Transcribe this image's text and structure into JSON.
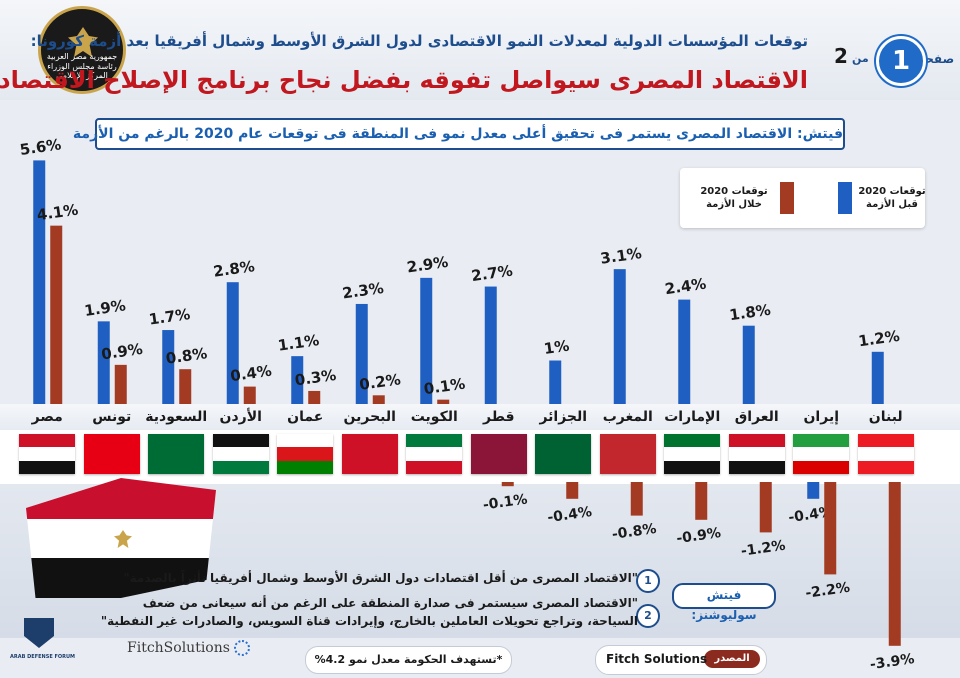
{
  "header": {
    "subtitle": "توقعات المؤسسات الدولية لمعدلات النمو الاقتصادى لدول الشرق الأوسط وشمال أفريقيا بعد أزمة كورونا:",
    "title": "الاقتصاد المصرى سيواصل تفوقه بفضل نجاح برنامج الإصلاح الاقتصادى",
    "logo_text": "جمهورية مصر العربية رئاسة مجلس الوزراء المركز الإعلامى",
    "page_word": "صفحة",
    "page_number": "1",
    "page_of": "من",
    "page_total": "2"
  },
  "fitch_note": "فيتش: الاقتصاد المصرى يستمر فى تحقيق أعلى معدل نمو فى المنطقة فى توقعات عام 2020 بالرغم من الأزمة",
  "legend": {
    "before": "توقعات 2020 قبل الأزمة",
    "during": "توقعات 2020 خلال الأزمة",
    "before_color": "#1f5fc2",
    "during_color": "#a33a22"
  },
  "chart_data": {
    "type": "bar",
    "categories": [
      "مصر",
      "تونس",
      "السعودية",
      "الأردن",
      "عمان",
      "البحرين",
      "الكويت",
      "قطر",
      "الجزائر",
      "المغرب",
      "الإمارات",
      "العراق",
      "إيران",
      "لبنان"
    ],
    "series": [
      {
        "values": [
          5.6,
          1.9,
          1.7,
          2.8,
          1.1,
          2.3,
          2.9,
          2.7,
          1,
          3.1,
          2.4,
          1.8,
          -0.4,
          1.2
        ]
      },
      {
        "values": [
          4.1,
          0.9,
          0.8,
          0.4,
          0.3,
          0.2,
          0.1,
          -0.1,
          -0.4,
          -0.8,
          -0.9,
          -1.2,
          -2.2,
          -3.9
        ]
      }
    ],
    "value_labels_before": [
      "5.6%",
      "1.9%",
      "1.7%",
      "2.8%",
      "1.1%",
      "2.3%",
      "2.9%",
      "2.7%",
      "1%",
      "3.1%",
      "2.4%",
      "1.8%",
      "-0.4%",
      "1.2%"
    ],
    "value_labels_during": [
      "4.1%",
      "0.9%",
      "0.8%",
      "0.4%",
      "0.3%",
      "0.2%",
      "0.1%",
      "-0.1%",
      "-0.4%",
      "-0.8%",
      "-0.9%",
      "-1.2%",
      "-2.2%",
      "-3.9%"
    ]
  },
  "flags": [
    {
      "country": "مصر",
      "stripes": [
        "#ce1126",
        "#ffffff",
        "#111111"
      ]
    },
    {
      "country": "تونس",
      "stripes": [
        "#e70013"
      ]
    },
    {
      "country": "السعودية",
      "stripes": [
        "#006c35"
      ]
    },
    {
      "country": "الأردن",
      "stripes": [
        "#111111",
        "#ffffff",
        "#007a3d"
      ]
    },
    {
      "country": "عمان",
      "stripes": [
        "#ffffff",
        "#db161b",
        "#008000"
      ]
    },
    {
      "country": "البحرين",
      "stripes": [
        "#ce1126"
      ]
    },
    {
      "country": "الكويت",
      "stripes": [
        "#007a3d",
        "#ffffff",
        "#ce1126"
      ]
    },
    {
      "country": "قطر",
      "stripes": [
        "#8a1538"
      ]
    },
    {
      "country": "الجزائر",
      "stripes": [
        "#006233"
      ]
    },
    {
      "country": "المغرب",
      "stripes": [
        "#c1272d"
      ]
    },
    {
      "country": "الإمارات",
      "stripes": [
        "#00732f",
        "#ffffff",
        "#111111"
      ]
    },
    {
      "country": "العراق",
      "stripes": [
        "#ce1126",
        "#ffffff",
        "#111111"
      ]
    },
    {
      "country": "إيران",
      "stripes": [
        "#239f40",
        "#ffffff",
        "#da0000"
      ]
    },
    {
      "country": "لبنان",
      "stripes": [
        "#ed1c24",
        "#ffffff",
        "#ed1c24"
      ]
    }
  ],
  "quotes": {
    "q1_num": "1",
    "q1": "\"الاقتصاد المصرى من أقل اقتصادات دول الشرق الأوسط وشمال أفريقيا تأثراً بالصدمة\"",
    "fitch_solutions_label": "فيتش سوليوشنز:",
    "q2_num": "2",
    "q2_line1": "\"الاقتصاد المصرى سيستمر فى صدارة المنطقة على الرغم من أنه سيعانى من ضعف",
    "q2_line2": "السياحة، وتراجع تحويلات العاملين بالخارج، وإيرادات قناة السويس، والصادرات غير النفطية\""
  },
  "footer": {
    "target_note": "*تستهدف الحكومة معدل نمو 4.2%",
    "source_tag": "المصدر",
    "source_name": "Fitch Solutions",
    "fitch_logo": "FitchSolutions",
    "watermark": "ARAB DEFENSE FORUM"
  }
}
